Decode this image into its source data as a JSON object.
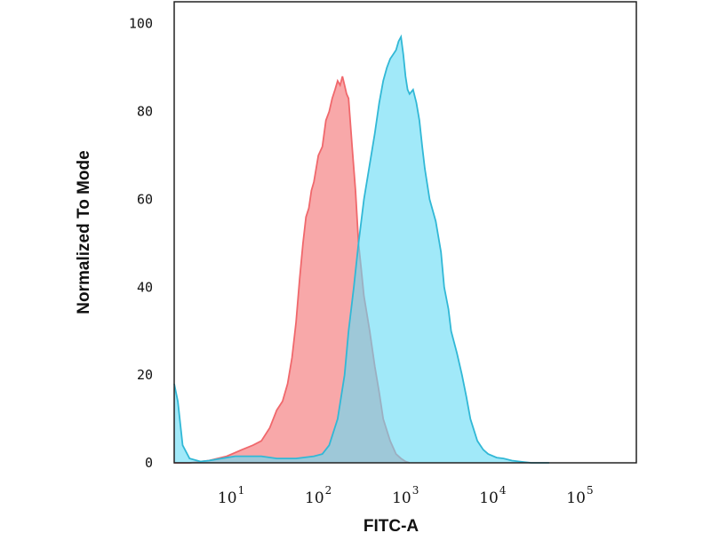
{
  "chart_data": {
    "type": "area",
    "xlabel": "FITC-A",
    "ylabel": "Normalized To Mode",
    "xscale": "log",
    "xlim": [
      2,
      400000
    ],
    "ylim": [
      0,
      105
    ],
    "yticks": [
      "0",
      "20",
      "40",
      "60",
      "80",
      "100"
    ],
    "xticks": [
      {
        "base": "10",
        "exp": "1",
        "value": 10
      },
      {
        "base": "10",
        "exp": "2",
        "value": 100
      },
      {
        "base": "10",
        "exp": "3",
        "value": 1000
      },
      {
        "base": "10",
        "exp": "4",
        "value": 10000
      },
      {
        "base": "10",
        "exp": "5",
        "value": 100000
      }
    ],
    "series": [
      {
        "color": "#f0686c",
        "fill": "#f8a3a4",
        "x": [
          2,
          3,
          5,
          8,
          12,
          16,
          20,
          25,
          30,
          35,
          40,
          45,
          50,
          55,
          60,
          65,
          70,
          75,
          80,
          90,
          100,
          110,
          120,
          130,
          140,
          150,
          160,
          170,
          180,
          190,
          200,
          220,
          240,
          260,
          280,
          300,
          350,
          400,
          450,
          500,
          600,
          700,
          800,
          900,
          1000
        ],
        "y": [
          0,
          0,
          0.5,
          1.5,
          3,
          4,
          5,
          8,
          12,
          14,
          18,
          24,
          32,
          42,
          50,
          56,
          58,
          62,
          64,
          70,
          72,
          78,
          80,
          83,
          85,
          87,
          86,
          88,
          86,
          84,
          83,
          72,
          62,
          50,
          44,
          38,
          30,
          22,
          16,
          10,
          5,
          2,
          1,
          0.3,
          0
        ]
      },
      {
        "color": "#31b8d6",
        "fill": "#68dcf6",
        "x": [
          2,
          2.2,
          2.5,
          3,
          4,
          5,
          7,
          10,
          15,
          20,
          30,
          50,
          80,
          100,
          120,
          150,
          180,
          200,
          230,
          260,
          300,
          350,
          400,
          450,
          500,
          550,
          600,
          650,
          700,
          750,
          800,
          850,
          900,
          950,
          1000,
          1100,
          1200,
          1300,
          1400,
          1500,
          1700,
          2000,
          2300,
          2500,
          2800,
          3000,
          3500,
          4000,
          4500,
          5000,
          6000,
          7000,
          8000,
          10000,
          12000,
          15000,
          20000,
          25000,
          30000,
          40000
        ],
        "y": [
          18,
          14,
          4,
          1,
          0.3,
          0.5,
          1,
          1.5,
          1.5,
          1.5,
          1,
          1,
          1.5,
          2,
          4,
          10,
          20,
          30,
          40,
          50,
          60,
          68,
          75,
          82,
          87,
          90,
          92,
          93,
          94,
          96,
          97,
          93,
          88,
          85,
          84,
          85,
          82,
          78,
          72,
          67,
          60,
          55,
          48,
          40,
          35,
          30,
          25,
          20,
          15,
          10,
          5,
          3,
          2,
          1.2,
          1,
          0.5,
          0.2,
          0,
          0,
          0
        ]
      }
    ]
  }
}
